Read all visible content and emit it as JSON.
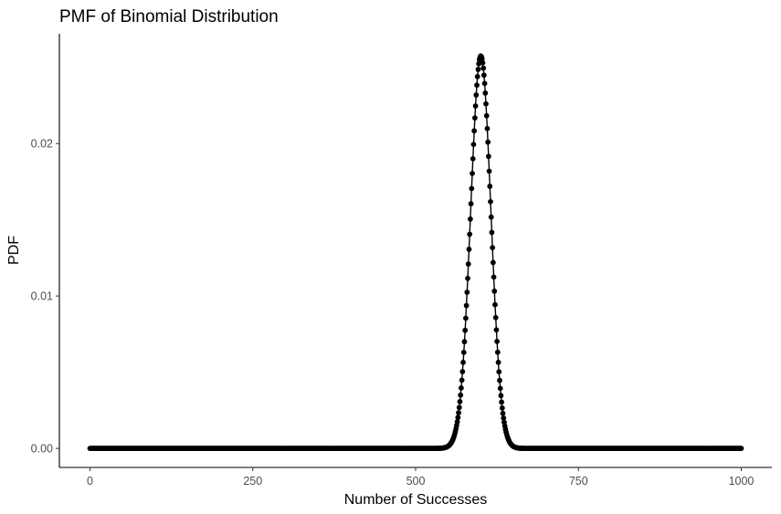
{
  "chart_data": {
    "type": "line",
    "title": "PMF of Binomial Distribution",
    "xlabel": "Number of Successes",
    "ylabel": "PDF",
    "distribution": {
      "n": 1000,
      "p": 0.6
    },
    "x_range": [
      0,
      1000
    ],
    "xlim": [
      -47,
      1047
    ],
    "ylim": [
      -0.00125,
      0.0272
    ],
    "x_ticks": [
      0,
      250,
      500,
      750,
      1000
    ],
    "x_tick_labels": [
      "0",
      "250",
      "500",
      "750",
      "1000"
    ],
    "y_ticks": [
      0.0,
      0.01,
      0.02
    ],
    "y_tick_labels": [
      "0.00",
      "0.01",
      "0.02"
    ],
    "peak": {
      "x": 600,
      "y": 0.0257
    },
    "grid": false,
    "legend": "none",
    "series": [
      {
        "style": "points-and-line",
        "color": "#000000"
      }
    ]
  }
}
